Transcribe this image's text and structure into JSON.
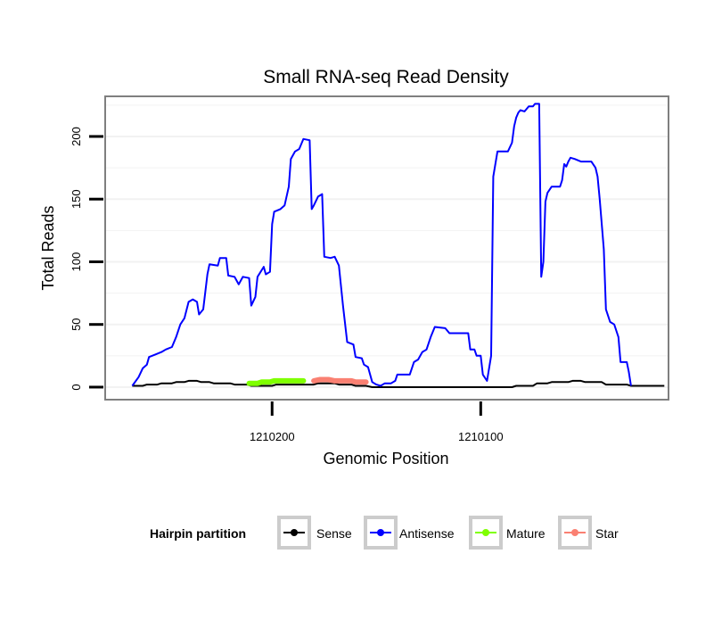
{
  "chart_data": {
    "type": "line",
    "title": "Small RNA-seq Read Density",
    "xlabel": "Genomic Position",
    "ylabel": "Total Reads",
    "xlim": [
      1210280,
      1210010
    ],
    "ylim": [
      -10,
      232
    ],
    "x_reversed": true,
    "xticks": [
      1210200,
      1210100
    ],
    "xtick_labels": [
      "1210200",
      "1210100"
    ],
    "yticks": [
      0,
      50,
      100,
      150,
      200
    ],
    "ytick_labels": [
      "0",
      "50",
      "100",
      "150",
      "200"
    ],
    "grid": true,
    "legend_position": "bottom",
    "series": [
      {
        "name": "Sense",
        "color": "#000000",
        "points": [
          [
            1210267,
            1
          ],
          [
            1210262,
            1
          ],
          [
            1210260,
            2
          ],
          [
            1210255,
            2
          ],
          [
            1210253,
            3
          ],
          [
            1210248,
            3
          ],
          [
            1210246,
            4
          ],
          [
            1210242,
            4
          ],
          [
            1210240,
            5
          ],
          [
            1210236,
            5
          ],
          [
            1210234,
            4
          ],
          [
            1210230,
            4
          ],
          [
            1210228,
            3
          ],
          [
            1210220,
            3
          ],
          [
            1210218,
            2
          ],
          [
            1210212,
            2
          ],
          [
            1210210,
            1
          ],
          [
            1210200,
            1
          ],
          [
            1210198,
            2
          ],
          [
            1210180,
            2
          ],
          [
            1210178,
            3
          ],
          [
            1210170,
            3
          ],
          [
            1210168,
            2
          ],
          [
            1210162,
            2
          ],
          [
            1210160,
            1
          ],
          [
            1210155,
            1
          ],
          [
            1210152,
            0
          ],
          [
            1210085,
            0
          ],
          [
            1210083,
            1
          ],
          [
            1210075,
            1
          ],
          [
            1210073,
            3
          ],
          [
            1210068,
            3
          ],
          [
            1210066,
            4
          ],
          [
            1210058,
            4
          ],
          [
            1210056,
            5
          ],
          [
            1210052,
            5
          ],
          [
            1210050,
            4
          ],
          [
            1210042,
            4
          ],
          [
            1210040,
            2
          ],
          [
            1210030,
            2
          ],
          [
            1210028,
            1
          ],
          [
            1210012,
            1
          ]
        ]
      },
      {
        "name": "Antisense",
        "color": "#0000ff",
        "points": [
          [
            1210267,
            1
          ],
          [
            1210264,
            8
          ],
          [
            1210262,
            15
          ],
          [
            1210260,
            18
          ],
          [
            1210259,
            24
          ],
          [
            1210256,
            26
          ],
          [
            1210253,
            28
          ],
          [
            1210251,
            30
          ],
          [
            1210248,
            32
          ],
          [
            1210246,
            40
          ],
          [
            1210244,
            50
          ],
          [
            1210242,
            55
          ],
          [
            1210240,
            68
          ],
          [
            1210238,
            70
          ],
          [
            1210236,
            68
          ],
          [
            1210235,
            58
          ],
          [
            1210233,
            62
          ],
          [
            1210231,
            90
          ],
          [
            1210230,
            98
          ],
          [
            1210226,
            97
          ],
          [
            1210225,
            103
          ],
          [
            1210222,
            103
          ],
          [
            1210221,
            89
          ],
          [
            1210218,
            88
          ],
          [
            1210216,
            82
          ],
          [
            1210214,
            88
          ],
          [
            1210211,
            87
          ],
          [
            1210210,
            65
          ],
          [
            1210208,
            72
          ],
          [
            1210207,
            88
          ],
          [
            1210204,
            96
          ],
          [
            1210203,
            90
          ],
          [
            1210201,
            92
          ],
          [
            1210200,
            130
          ],
          [
            1210199,
            140
          ],
          [
            1210196,
            142
          ],
          [
            1210194,
            145
          ],
          [
            1210192,
            160
          ],
          [
            1210191,
            182
          ],
          [
            1210189,
            188
          ],
          [
            1210187,
            190
          ],
          [
            1210185,
            198
          ],
          [
            1210182,
            197
          ],
          [
            1210181,
            142
          ],
          [
            1210180,
            145
          ],
          [
            1210178,
            152
          ],
          [
            1210176,
            154
          ],
          [
            1210175,
            104
          ],
          [
            1210172,
            103
          ],
          [
            1210170,
            104
          ],
          [
            1210168,
            97
          ],
          [
            1210166,
            65
          ],
          [
            1210164,
            36
          ],
          [
            1210161,
            34
          ],
          [
            1210160,
            24
          ],
          [
            1210157,
            23
          ],
          [
            1210156,
            18
          ],
          [
            1210154,
            16
          ],
          [
            1210152,
            4
          ],
          [
            1210150,
            2
          ],
          [
            1210148,
            1
          ],
          [
            1210146,
            3
          ],
          [
            1210143,
            3
          ],
          [
            1210141,
            5
          ],
          [
            1210140,
            10
          ],
          [
            1210134,
            10
          ],
          [
            1210132,
            20
          ],
          [
            1210130,
            22
          ],
          [
            1210128,
            28
          ],
          [
            1210126,
            30
          ],
          [
            1210124,
            40
          ],
          [
            1210122,
            48
          ],
          [
            1210117,
            47
          ],
          [
            1210115,
            43
          ],
          [
            1210106,
            43
          ],
          [
            1210105,
            30
          ],
          [
            1210103,
            30
          ],
          [
            1210102,
            25
          ],
          [
            1210100,
            25
          ],
          [
            1210099,
            10
          ],
          [
            1210097,
            5
          ],
          [
            1210095,
            25
          ],
          [
            1210094,
            168
          ],
          [
            1210092,
            188
          ],
          [
            1210087,
            188
          ],
          [
            1210085,
            195
          ],
          [
            1210084,
            208
          ],
          [
            1210083,
            215
          ],
          [
            1210082,
            219
          ],
          [
            1210081,
            221
          ],
          [
            1210079,
            220
          ],
          [
            1210077,
            224
          ],
          [
            1210075,
            224
          ],
          [
            1210074,
            226
          ],
          [
            1210072,
            226
          ],
          [
            1210071,
            88
          ],
          [
            1210070,
            100
          ],
          [
            1210069,
            148
          ],
          [
            1210068,
            155
          ],
          [
            1210066,
            160
          ],
          [
            1210062,
            160
          ],
          [
            1210061,
            165
          ],
          [
            1210060,
            178
          ],
          [
            1210059,
            176
          ],
          [
            1210058,
            180
          ],
          [
            1210057,
            183
          ],
          [
            1210055,
            182
          ],
          [
            1210052,
            180
          ],
          [
            1210047,
            180
          ],
          [
            1210045,
            175
          ],
          [
            1210044,
            168
          ],
          [
            1210043,
            150
          ],
          [
            1210041,
            110
          ],
          [
            1210040,
            62
          ],
          [
            1210038,
            52
          ],
          [
            1210036,
            50
          ],
          [
            1210034,
            40
          ],
          [
            1210033,
            20
          ],
          [
            1210030,
            20
          ],
          [
            1210029,
            12
          ],
          [
            1210028,
            1
          ]
        ]
      },
      {
        "name": "Mature",
        "color": "#7fff00",
        "points": [
          [
            1210211,
            3
          ],
          [
            1210207,
            3
          ],
          [
            1210205,
            4
          ],
          [
            1210201,
            4
          ],
          [
            1210199,
            5
          ],
          [
            1210185,
            5
          ]
        ]
      },
      {
        "name": "Star",
        "color": "#fa8072",
        "points": [
          [
            1210180,
            5
          ],
          [
            1210177,
            6
          ],
          [
            1210173,
            6
          ],
          [
            1210170,
            5
          ],
          [
            1210162,
            5
          ],
          [
            1210160,
            4
          ],
          [
            1210155,
            4
          ]
        ]
      }
    ],
    "legend": {
      "title": "Hairpin partition",
      "entries": [
        "Sense",
        "Antisense",
        "Mature",
        "Star"
      ]
    }
  }
}
